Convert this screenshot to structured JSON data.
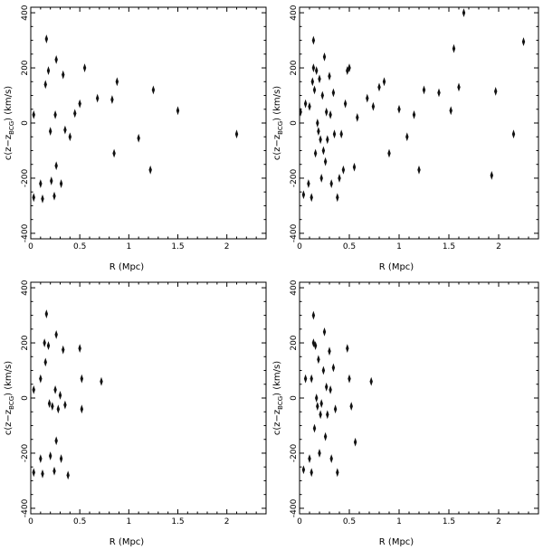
{
  "axis_text": {
    "xlabel": "R (Mpc)",
    "ylabel_prefix": "c(z",
    "ylabel_minus": "−z",
    "ylabel_sub": "BCG",
    "ylabel_suffix": ") (km/s)"
  },
  "chart_data": [
    {
      "type": "scatter",
      "panel": "top-left",
      "xlim": [
        0,
        2.4
      ],
      "ylim": [
        -420,
        420
      ],
      "xticks": [
        0,
        0.5,
        1,
        1.5,
        2
      ],
      "yticks": [
        -400,
        -200,
        0,
        200,
        400
      ],
      "xlabel": "R (Mpc)",
      "ylabel": "c(z−z_BCG) (km/s)",
      "points": [
        [
          0.03,
          30
        ],
        [
          0.03,
          -270
        ],
        [
          0.1,
          -220
        ],
        [
          0.12,
          -275
        ],
        [
          0.15,
          140
        ],
        [
          0.16,
          305
        ],
        [
          0.18,
          190
        ],
        [
          0.2,
          -30
        ],
        [
          0.21,
          -210
        ],
        [
          0.24,
          -265
        ],
        [
          0.25,
          30
        ],
        [
          0.26,
          -155
        ],
        [
          0.26,
          230
        ],
        [
          0.31,
          -220
        ],
        [
          0.33,
          175
        ],
        [
          0.35,
          -25
        ],
        [
          0.4,
          -50
        ],
        [
          0.45,
          35
        ],
        [
          0.5,
          70
        ],
        [
          0.55,
          200
        ],
        [
          0.68,
          90
        ],
        [
          0.83,
          85
        ],
        [
          0.85,
          -110
        ],
        [
          0.88,
          150
        ],
        [
          1.1,
          -55
        ],
        [
          1.22,
          -170
        ],
        [
          1.25,
          120
        ],
        [
          1.5,
          45
        ],
        [
          2.1,
          -40
        ]
      ]
    },
    {
      "type": "scatter",
      "panel": "top-right",
      "xlim": [
        0,
        2.4
      ],
      "ylim": [
        -420,
        420
      ],
      "xticks": [
        0,
        0.5,
        1,
        1.5,
        2
      ],
      "yticks": [
        -400,
        -200,
        0,
        200,
        400
      ],
      "xlabel": "R (Mpc)",
      "ylabel": "c(z−z_BCG) (km/s)",
      "points": [
        [
          0.01,
          40
        ],
        [
          0.04,
          -260
        ],
        [
          0.06,
          70
        ],
        [
          0.09,
          -220
        ],
        [
          0.1,
          60
        ],
        [
          0.12,
          -270
        ],
        [
          0.13,
          150
        ],
        [
          0.14,
          300
        ],
        [
          0.14,
          200
        ],
        [
          0.15,
          120
        ],
        [
          0.16,
          -110
        ],
        [
          0.17,
          190
        ],
        [
          0.18,
          0
        ],
        [
          0.19,
          -30
        ],
        [
          0.2,
          160
        ],
        [
          0.21,
          -60
        ],
        [
          0.22,
          -200
        ],
        [
          0.23,
          100
        ],
        [
          0.24,
          -100
        ],
        [
          0.25,
          240
        ],
        [
          0.26,
          -140
        ],
        [
          0.27,
          40
        ],
        [
          0.28,
          -60
        ],
        [
          0.3,
          170
        ],
        [
          0.31,
          30
        ],
        [
          0.32,
          -220
        ],
        [
          0.34,
          110
        ],
        [
          0.35,
          -40
        ],
        [
          0.38,
          -270
        ],
        [
          0.4,
          -200
        ],
        [
          0.42,
          -40
        ],
        [
          0.44,
          -170
        ],
        [
          0.46,
          70
        ],
        [
          0.48,
          190
        ],
        [
          0.5,
          200
        ],
        [
          0.55,
          -160
        ],
        [
          0.58,
          20
        ],
        [
          0.68,
          90
        ],
        [
          0.74,
          60
        ],
        [
          0.8,
          130
        ],
        [
          0.85,
          150
        ],
        [
          0.9,
          -110
        ],
        [
          1.0,
          50
        ],
        [
          1.08,
          -50
        ],
        [
          1.15,
          30
        ],
        [
          1.2,
          -170
        ],
        [
          1.25,
          120
        ],
        [
          1.4,
          110
        ],
        [
          1.52,
          45
        ],
        [
          1.55,
          270
        ],
        [
          1.6,
          130
        ],
        [
          1.65,
          400
        ],
        [
          1.93,
          -190
        ],
        [
          1.97,
          115
        ],
        [
          2.15,
          -40
        ],
        [
          2.25,
          295
        ]
      ]
    },
    {
      "type": "scatter",
      "panel": "bottom-left",
      "xlim": [
        0,
        2.4
      ],
      "ylim": [
        -420,
        420
      ],
      "xticks": [
        0,
        0.5,
        1,
        1.5,
        2
      ],
      "yticks": [
        -400,
        -200,
        0,
        200,
        400
      ],
      "xlabel": "R (Mpc)",
      "ylabel": "c(z−z_BCG) (km/s)",
      "points": [
        [
          0.03,
          30
        ],
        [
          0.03,
          -270
        ],
        [
          0.1,
          -220
        ],
        [
          0.1,
          70
        ],
        [
          0.12,
          -275
        ],
        [
          0.14,
          200
        ],
        [
          0.15,
          130
        ],
        [
          0.16,
          305
        ],
        [
          0.18,
          190
        ],
        [
          0.19,
          -20
        ],
        [
          0.2,
          -210
        ],
        [
          0.22,
          -30
        ],
        [
          0.24,
          -265
        ],
        [
          0.25,
          30
        ],
        [
          0.26,
          -155
        ],
        [
          0.26,
          230
        ],
        [
          0.28,
          -40
        ],
        [
          0.3,
          10
        ],
        [
          0.31,
          -220
        ],
        [
          0.33,
          175
        ],
        [
          0.35,
          -25
        ],
        [
          0.38,
          -280
        ],
        [
          0.5,
          180
        ],
        [
          0.52,
          70
        ],
        [
          0.52,
          -40
        ],
        [
          0.72,
          60
        ]
      ]
    },
    {
      "type": "scatter",
      "panel": "bottom-right",
      "xlim": [
        0,
        2.4
      ],
      "ylim": [
        -420,
        420
      ],
      "xticks": [
        0,
        0.5,
        1,
        1.5,
        2
      ],
      "yticks": [
        -400,
        -200,
        0,
        200,
        400
      ],
      "xlabel": "R (Mpc)",
      "ylabel": "c(z−z_BCG) (km/s)",
      "points": [
        [
          0.04,
          -260
        ],
        [
          0.06,
          70
        ],
        [
          0.1,
          -220
        ],
        [
          0.12,
          70
        ],
        [
          0.12,
          -270
        ],
        [
          0.14,
          200
        ],
        [
          0.14,
          300
        ],
        [
          0.15,
          -110
        ],
        [
          0.16,
          190
        ],
        [
          0.17,
          0
        ],
        [
          0.18,
          -30
        ],
        [
          0.19,
          140
        ],
        [
          0.2,
          -200
        ],
        [
          0.21,
          -60
        ],
        [
          0.22,
          -20
        ],
        [
          0.24,
          100
        ],
        [
          0.25,
          240
        ],
        [
          0.26,
          -140
        ],
        [
          0.27,
          40
        ],
        [
          0.28,
          -60
        ],
        [
          0.3,
          170
        ],
        [
          0.31,
          30
        ],
        [
          0.32,
          -220
        ],
        [
          0.34,
          110
        ],
        [
          0.36,
          -40
        ],
        [
          0.38,
          -270
        ],
        [
          0.48,
          180
        ],
        [
          0.5,
          70
        ],
        [
          0.52,
          -30
        ],
        [
          0.56,
          -160
        ],
        [
          0.72,
          60
        ]
      ]
    }
  ]
}
